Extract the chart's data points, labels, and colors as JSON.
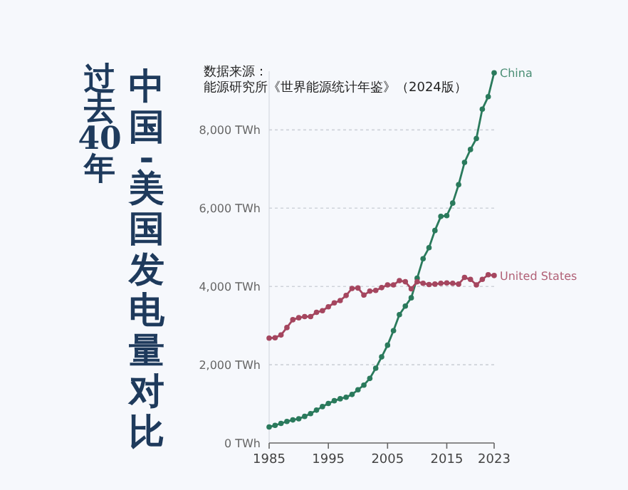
{
  "chart_data": {
    "type": "line",
    "title": "过去40年",
    "subtitle": "中国-美国发电量对比",
    "annotations": [
      "数据来源：",
      "能源研究所《世界能源统计年鉴》（2024版）"
    ],
    "x": [
      1985,
      1986,
      1987,
      1988,
      1989,
      1990,
      1991,
      1992,
      1993,
      1994,
      1995,
      1996,
      1997,
      1998,
      1999,
      2000,
      2001,
      2002,
      2003,
      2004,
      2005,
      2006,
      2007,
      2008,
      2009,
      2010,
      2011,
      2012,
      2013,
      2014,
      2015,
      2016,
      2017,
      2018,
      2019,
      2020,
      2021,
      2022,
      2023
    ],
    "xlim": [
      1985,
      2023
    ],
    "xticks": [
      1985,
      1995,
      2005,
      2015,
      2023
    ],
    "ylim": [
      0,
      9500
    ],
    "yticks": [
      {
        "value": 0,
        "label": "0 TWh"
      },
      {
        "value": 2000,
        "label": "2,000 TWh"
      },
      {
        "value": 4000,
        "label": "4,000 TWh"
      },
      {
        "value": 6000,
        "label": "6,000 TWh"
      },
      {
        "value": 8000,
        "label": "8,000 TWh"
      }
    ],
    "grid": "y",
    "marker": "circle",
    "line_style": "solid",
    "series": [
      {
        "name": "China",
        "color": "#2a7a5c",
        "values": [
          410,
          450,
          500,
          550,
          590,
          620,
          680,
          750,
          840,
          930,
          1010,
          1080,
          1130,
          1170,
          1240,
          1360,
          1480,
          1650,
          1910,
          2200,
          2500,
          2870,
          3280,
          3500,
          3710,
          4210,
          4710,
          4990,
          5430,
          5790,
          5810,
          6130,
          6600,
          7170,
          7500,
          7780,
          8530,
          8850,
          9460
        ]
      },
      {
        "name": "United States",
        "color": "#a5465f",
        "values": [
          2680,
          2690,
          2760,
          2950,
          3150,
          3200,
          3230,
          3230,
          3340,
          3380,
          3480,
          3580,
          3640,
          3770,
          3950,
          3960,
          3780,
          3880,
          3900,
          3970,
          4040,
          4040,
          4150,
          4120,
          3940,
          4120,
          4080,
          4050,
          4060,
          4080,
          4090,
          4080,
          4060,
          4230,
          4180,
          4040,
          4180,
          4300,
          4280
        ]
      }
    ]
  }
}
